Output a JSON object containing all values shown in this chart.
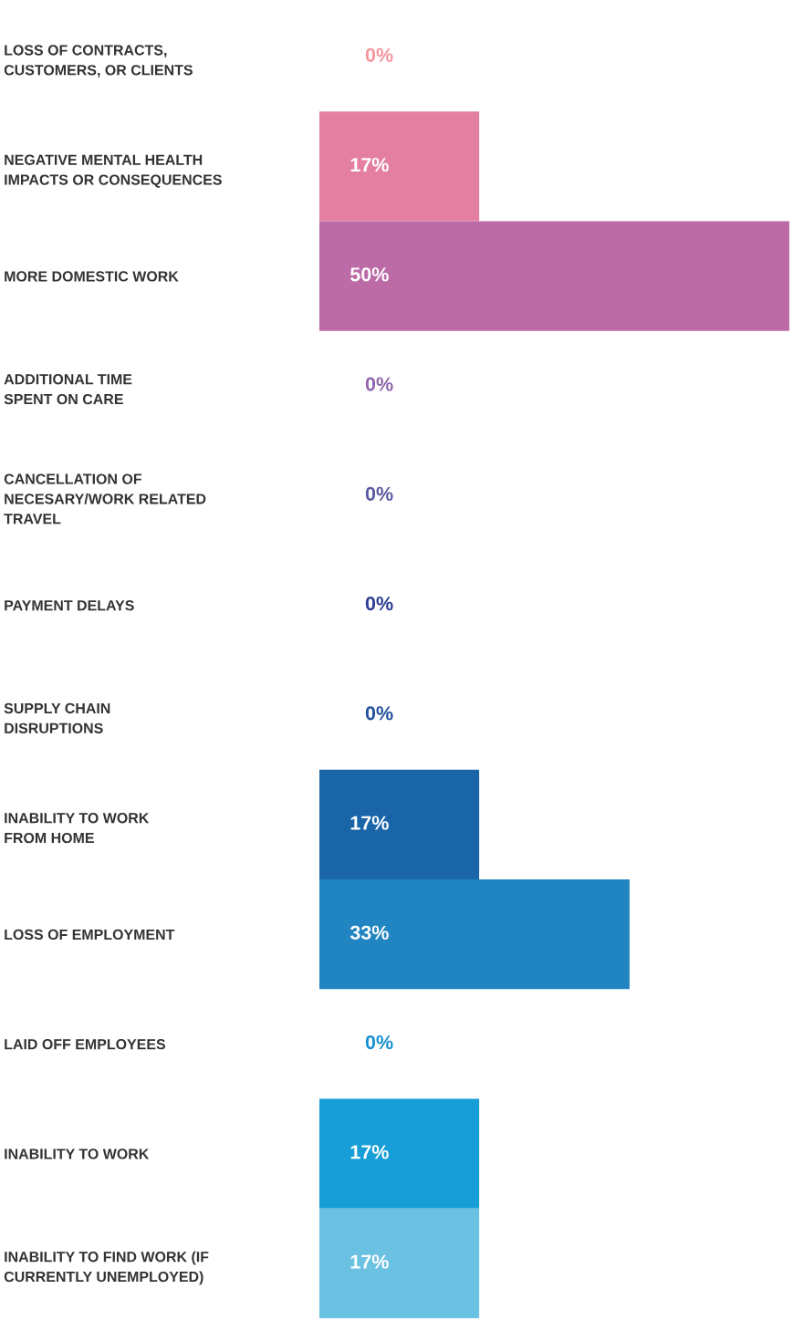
{
  "chart_data": {
    "type": "bar",
    "orientation": "horizontal",
    "categories": [
      "LOSS OF CONTRACTS,\nCUSTOMERS, OR CLIENTS",
      "NEGATIVE MENTAL HEALTH\nIMPACTS OR CONSEQUENCES",
      "MORE DOMESTIC WORK",
      "ADDITIONAL TIME\nSPENT ON CARE",
      "CANCELLATION OF\nNECESARY/WORK RELATED\nTRAVEL",
      "PAYMENT DELAYS",
      "SUPPLY CHAIN\nDISRUPTIONS",
      "INABILITY TO WORK\nFROM HOME",
      "LOSS OF EMPLOYMENT",
      "LAID OFF EMPLOYEES",
      "INABILITY TO WORK",
      "INABILITY TO FIND WORK (IF\nCURRENTLY UNEMPLOYED)"
    ],
    "values": [
      0,
      17,
      50,
      0,
      0,
      0,
      0,
      17,
      33,
      0,
      17,
      17
    ],
    "colors": [
      "#f4959c",
      "#e47fa2",
      "#bc6ba7",
      "#9064ab",
      "#5a5aa0",
      "#2d3c93",
      "#214f9c",
      "#1a64a8",
      "#2185c1",
      "#1791cf",
      "#179ed7",
      "#6bc1e2"
    ],
    "value_labels": [
      "0%",
      "17%",
      "50%",
      "0%",
      "0%",
      "0%",
      "0%",
      "17%",
      "33%",
      "0%",
      "17%",
      "17%"
    ],
    "xlim": [
      0,
      50
    ],
    "tick_labels": "y",
    "grid": false,
    "legend": false
  }
}
